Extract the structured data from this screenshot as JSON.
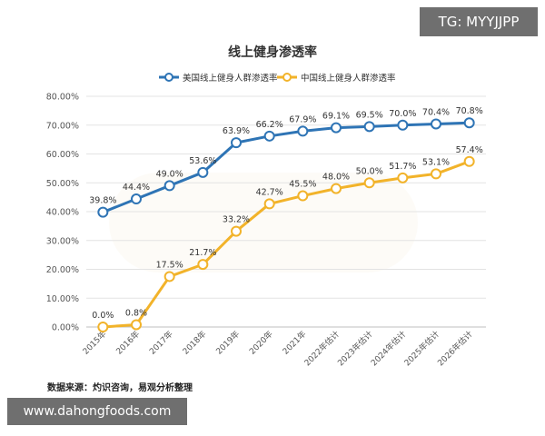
{
  "watermarks": {
    "top_right": "TG: MYYJJPP",
    "bottom_left": "www.dahongfoods.com"
  },
  "source_note": "数据来源：灼识咨询，易观分析整理",
  "chart_data": {
    "type": "line",
    "title": "线上健身渗透率",
    "categories": [
      "2015年",
      "2016年",
      "2017年",
      "2018年",
      "2019年",
      "2020年",
      "2021年",
      "2022年估计",
      "2023年估计",
      "2024年估计",
      "2025年估计",
      "2026年估计"
    ],
    "y_ticks": [
      "0.00%",
      "10.00%",
      "20.00%",
      "30.00%",
      "40.00%",
      "50.00%",
      "60.00%",
      "70.00%",
      "80.00%"
    ],
    "ylim": [
      0,
      80
    ],
    "grid": true,
    "legend_position": "top-center",
    "series": [
      {
        "name": "美国线上健身人群渗透率",
        "color": "#2e74b5",
        "values": [
          39.8,
          44.4,
          49.0,
          53.6,
          63.9,
          66.2,
          67.9,
          69.1,
          69.5,
          70.0,
          70.4,
          70.8
        ],
        "labels": [
          "39.8%",
          "44.4%",
          "49.0%",
          "53.6%",
          "63.9%",
          "66.2%",
          "67.9%",
          "69.1%",
          "69.5%",
          "70.0%",
          "70.4%",
          "70.8%"
        ]
      },
      {
        "name": "中国线上健身人群渗透率",
        "color": "#f2b32a",
        "values": [
          0.0,
          0.8,
          17.5,
          21.7,
          33.2,
          42.7,
          45.5,
          48.0,
          50.0,
          51.7,
          53.1,
          57.4
        ],
        "labels": [
          "0.0%",
          "0.8%",
          "17.5%",
          "21.7%",
          "33.2%",
          "42.7%",
          "45.5%",
          "48.0%",
          "50.0%",
          "51.7%",
          "53.1%",
          "57.4%"
        ]
      }
    ]
  }
}
